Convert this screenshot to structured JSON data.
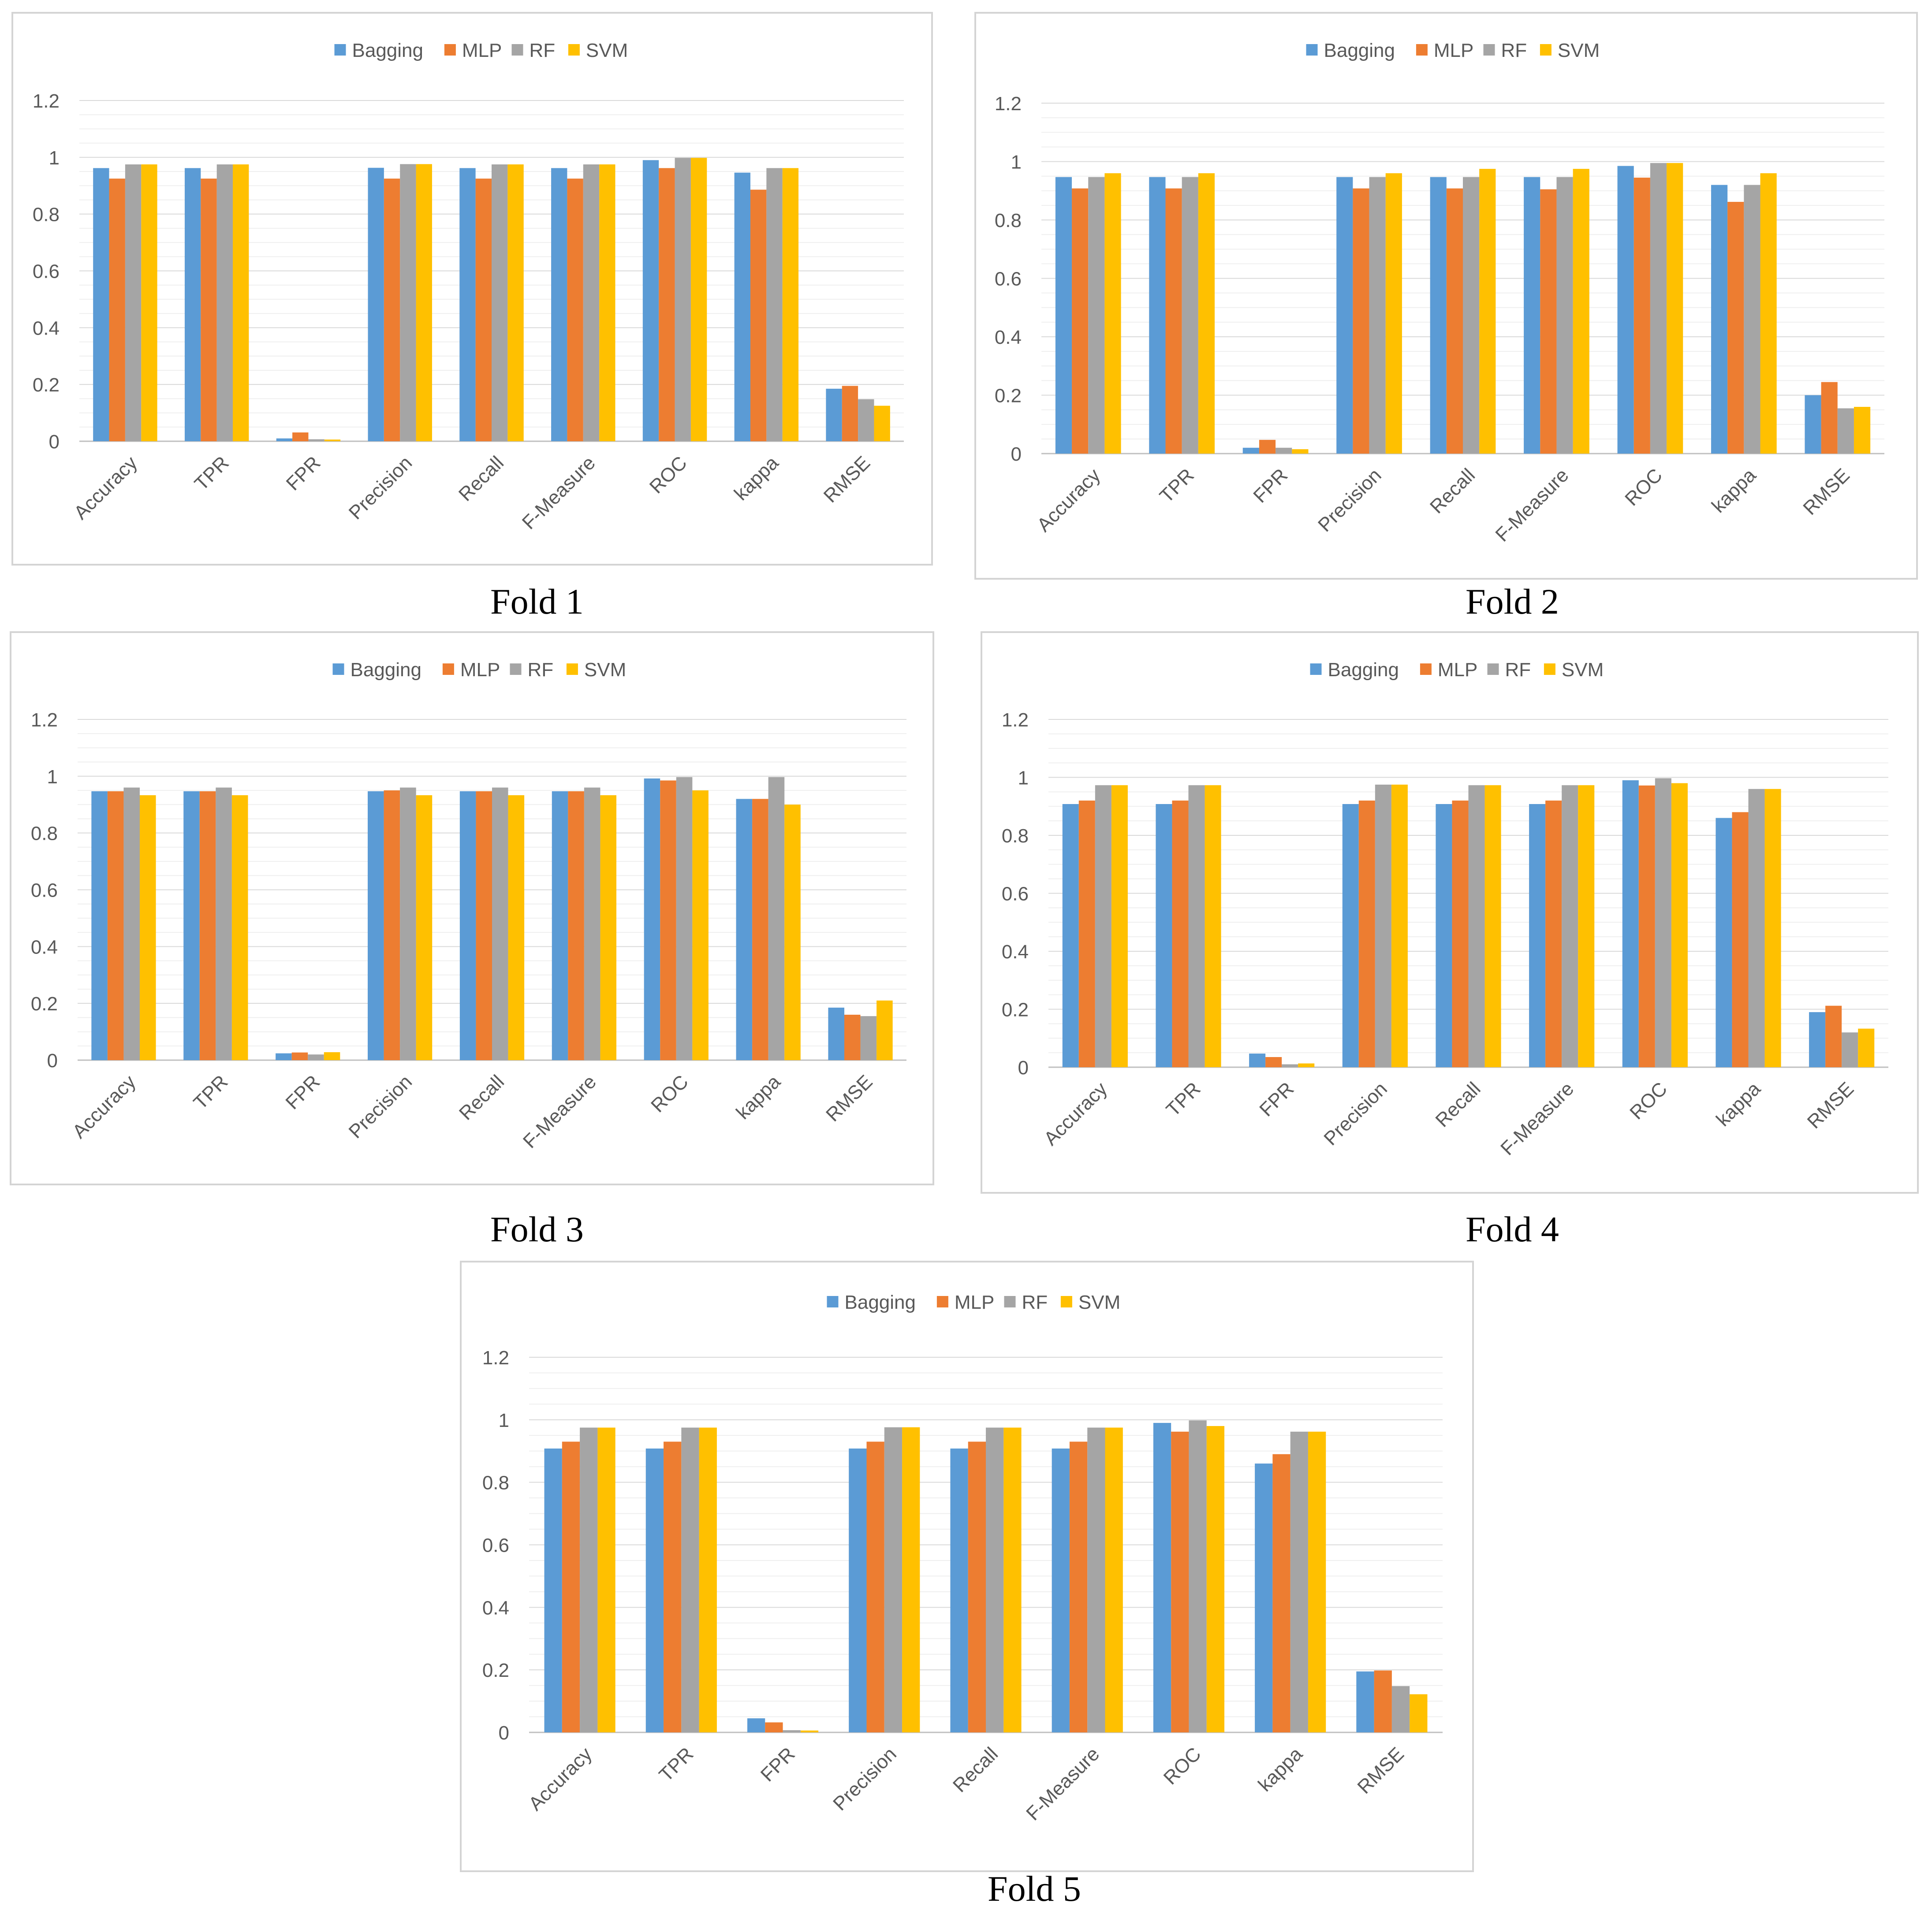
{
  "colors": {
    "Bagging": "#5b9bd5",
    "MLP": "#ed7d31",
    "RF": "#a5a5a5",
    "SVM": "#ffc000",
    "gridline": "#d9d9d9",
    "minor_gridline": "#efefef",
    "axis_text": "#595959"
  },
  "chart_data": [
    {
      "type": "bar",
      "caption": "Fold 1",
      "categories": [
        "Accuracy",
        "TPR",
        "FPR",
        "Precision",
        "Recall",
        "F-Measure",
        "ROC",
        "kappa",
        "RMSE"
      ],
      "ylim": [
        0,
        1.2
      ],
      "yticks": [
        "0",
        "0.2",
        "0.4",
        "0.6",
        "0.8",
        "1",
        "1.2"
      ],
      "legend": "top",
      "series": [
        {
          "name": "Bagging",
          "values": [
            0.962,
            0.962,
            0.01,
            0.963,
            0.962,
            0.962,
            0.99,
            0.946,
            0.185
          ]
        },
        {
          "name": "MLP",
          "values": [
            0.925,
            0.925,
            0.031,
            0.925,
            0.925,
            0.925,
            0.962,
            0.886,
            0.195
          ]
        },
        {
          "name": "RF",
          "values": [
            0.975,
            0.975,
            0.007,
            0.976,
            0.975,
            0.975,
            0.998,
            0.962,
            0.148
          ]
        },
        {
          "name": "SVM",
          "values": [
            0.975,
            0.975,
            0.006,
            0.976,
            0.975,
            0.975,
            0.998,
            0.962,
            0.125
          ]
        }
      ]
    },
    {
      "type": "bar",
      "caption": "Fold 2",
      "categories": [
        "Accuracy",
        "TPR",
        "FPR",
        "Precision",
        "Recall",
        "F-Measure",
        "ROC",
        "kappa",
        "RMSE"
      ],
      "ylim": [
        0,
        1.2
      ],
      "yticks": [
        "0",
        "0.2",
        "0.4",
        "0.6",
        "0.8",
        "1",
        "1.2"
      ],
      "legend": "top",
      "series": [
        {
          "name": "Bagging",
          "values": [
            0.947,
            0.947,
            0.02,
            0.947,
            0.947,
            0.947,
            0.985,
            0.92,
            0.2
          ]
        },
        {
          "name": "MLP",
          "values": [
            0.908,
            0.908,
            0.047,
            0.908,
            0.908,
            0.905,
            0.945,
            0.862,
            0.245
          ]
        },
        {
          "name": "RF",
          "values": [
            0.947,
            0.947,
            0.02,
            0.947,
            0.947,
            0.947,
            0.995,
            0.92,
            0.155
          ]
        },
        {
          "name": "SVM",
          "values": [
            0.96,
            0.96,
            0.015,
            0.96,
            0.975,
            0.975,
            0.995,
            0.96,
            0.16
          ]
        }
      ]
    },
    {
      "type": "bar",
      "caption": "Fold 3",
      "categories": [
        "Accuracy",
        "TPR",
        "FPR",
        "Precision",
        "Recall",
        "F-Measure",
        "ROC",
        "kappa",
        "RMSE"
      ],
      "ylim": [
        0,
        1.2
      ],
      "yticks": [
        "0",
        "0.2",
        "0.4",
        "0.6",
        "0.8",
        "1",
        "1.2"
      ],
      "legend": "top",
      "series": [
        {
          "name": "Bagging",
          "values": [
            0.947,
            0.947,
            0.024,
            0.947,
            0.947,
            0.947,
            0.992,
            0.92,
            0.185
          ]
        },
        {
          "name": "MLP",
          "values": [
            0.947,
            0.947,
            0.027,
            0.95,
            0.947,
            0.947,
            0.985,
            0.92,
            0.16
          ]
        },
        {
          "name": "RF",
          "values": [
            0.96,
            0.96,
            0.02,
            0.96,
            0.96,
            0.96,
            0.997,
            0.997,
            0.155
          ]
        },
        {
          "name": "SVM",
          "values": [
            0.933,
            0.933,
            0.028,
            0.933,
            0.933,
            0.933,
            0.95,
            0.9,
            0.21
          ]
        }
      ]
    },
    {
      "type": "bar",
      "caption": "Fold 4",
      "categories": [
        "Accuracy",
        "TPR",
        "FPR",
        "Precision",
        "Recall",
        "F-Measure",
        "ROC",
        "kappa",
        "RMSE"
      ],
      "ylim": [
        0,
        1.2
      ],
      "yticks": [
        "0",
        "0.2",
        "0.4",
        "0.6",
        "0.8",
        "1",
        "1.2"
      ],
      "legend": "top",
      "series": [
        {
          "name": "Bagging",
          "values": [
            0.908,
            0.908,
            0.047,
            0.908,
            0.908,
            0.908,
            0.99,
            0.86,
            0.19
          ]
        },
        {
          "name": "MLP",
          "values": [
            0.92,
            0.92,
            0.035,
            0.92,
            0.92,
            0.92,
            0.972,
            0.88,
            0.212
          ]
        },
        {
          "name": "RF",
          "values": [
            0.973,
            0.973,
            0.01,
            0.975,
            0.973,
            0.973,
            0.997,
            0.96,
            0.12
          ]
        },
        {
          "name": "SVM",
          "values": [
            0.973,
            0.973,
            0.013,
            0.975,
            0.973,
            0.973,
            0.98,
            0.96,
            0.133
          ]
        }
      ]
    },
    {
      "type": "bar",
      "caption": "Fold 5",
      "categories": [
        "Accuracy",
        "TPR",
        "FPR",
        "Precision",
        "Recall",
        "F-Measure",
        "ROC",
        "kappa",
        "RMSE"
      ],
      "ylim": [
        0,
        1.2
      ],
      "yticks": [
        "0",
        "0.2",
        "0.4",
        "0.6",
        "0.8",
        "1",
        "1.2"
      ],
      "legend": "top",
      "series": [
        {
          "name": "Bagging",
          "values": [
            0.908,
            0.908,
            0.045,
            0.908,
            0.908,
            0.908,
            0.99,
            0.86,
            0.195
          ]
        },
        {
          "name": "MLP",
          "values": [
            0.93,
            0.93,
            0.032,
            0.93,
            0.93,
            0.93,
            0.962,
            0.89,
            0.198
          ]
        },
        {
          "name": "RF",
          "values": [
            0.975,
            0.975,
            0.007,
            0.976,
            0.975,
            0.975,
            0.998,
            0.962,
            0.148
          ]
        },
        {
          "name": "SVM",
          "values": [
            0.975,
            0.975,
            0.006,
            0.976,
            0.975,
            0.975,
            0.98,
            0.962,
            0.122
          ]
        }
      ]
    }
  ]
}
